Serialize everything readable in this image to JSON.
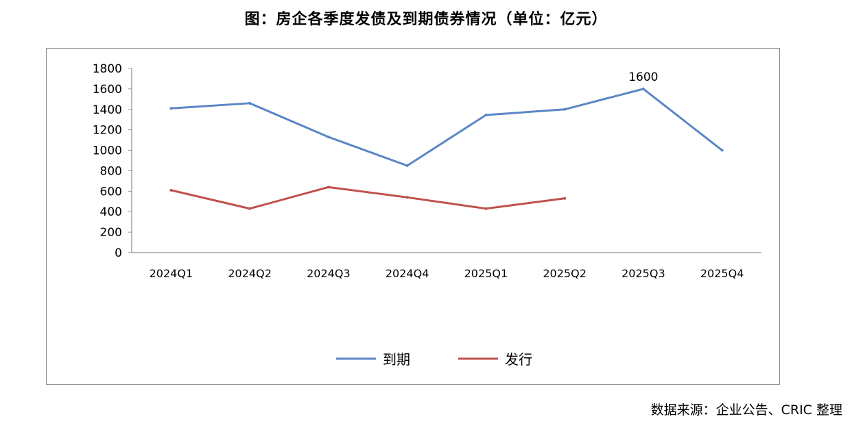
{
  "page": {
    "title": "图：房企各季度发债及到期债券情况（单位：亿元）",
    "source": "数据来源：企业公告、CRIC 整理"
  },
  "chart_data": {
    "type": "line",
    "title": "图：房企各季度发债及到期债券情况（单位：亿元）",
    "categories": [
      "2024Q1",
      "2024Q2",
      "2024Q3",
      "2024Q4",
      "2025Q1",
      "2025Q2",
      "2025Q3",
      "2025Q4"
    ],
    "ylim": [
      0,
      1800
    ],
    "yticks": [
      0,
      200,
      400,
      600,
      800,
      1000,
      1200,
      1400,
      1600,
      1800
    ],
    "grid": false,
    "legend_position": "bottom",
    "series": [
      {
        "name": "到期",
        "color": "#5b86c5",
        "values": [
          1410,
          1460,
          1130,
          850,
          1345,
          1400,
          1600,
          1000
        ]
      },
      {
        "name": "发行",
        "color": "#c0504d",
        "values": [
          610,
          430,
          640,
          540,
          430,
          530,
          null,
          null
        ]
      }
    ],
    "annotations": [
      {
        "series": 0,
        "index": 6,
        "text": "1600"
      }
    ]
  }
}
